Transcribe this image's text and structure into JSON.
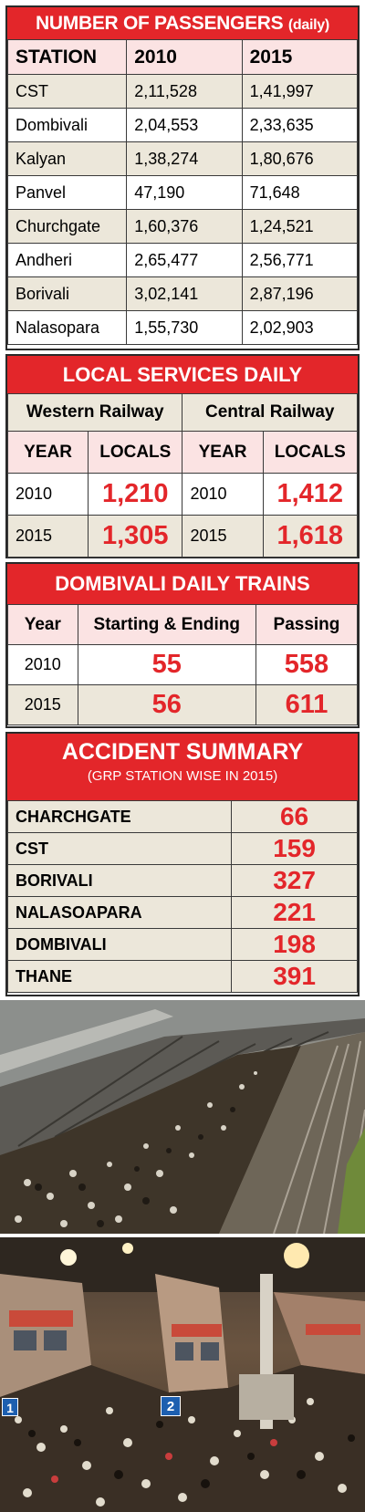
{
  "passengers": {
    "title": "NUMBER OF PASSENGERS",
    "title_suffix": "(daily)",
    "headers": [
      "STATION",
      "2010",
      "2015"
    ],
    "rows": [
      [
        "CST",
        "2,11,528",
        "1,41,997"
      ],
      [
        "Dombivali",
        "2,04,553",
        "2,33,635"
      ],
      [
        "Kalyan",
        "1,38,274",
        "1,80,676"
      ],
      [
        "Panvel",
        "47,190",
        "71,648"
      ],
      [
        "Churchgate",
        "1,60,376",
        "1,24,521"
      ],
      [
        "Andheri",
        "2,65,477",
        "2,56,771"
      ],
      [
        "Borivali",
        "3,02,141",
        "2,87,196"
      ],
      [
        "Nalasopara",
        "1,55,730",
        "2,02,903"
      ]
    ]
  },
  "locals": {
    "title": "LOCAL SERVICES DAILY",
    "western": "Western Railway",
    "central": "Central Railway",
    "col_year": "YEAR",
    "col_locals": "LOCALS",
    "rows": [
      {
        "w_year": "2010",
        "w_locals": "1,210",
        "c_year": "2010",
        "c_locals": "1,412"
      },
      {
        "w_year": "2015",
        "w_locals": "1,305",
        "c_year": "2015",
        "c_locals": "1,618"
      }
    ]
  },
  "dombivali": {
    "title": "DOMBIVALI DAILY TRAINS",
    "headers": [
      "Year",
      "Starting & Ending",
      "Passing"
    ],
    "rows": [
      [
        "2010",
        "55",
        "558"
      ],
      [
        "2015",
        "56",
        "611"
      ]
    ]
  },
  "accidents": {
    "title": "ACCIDENT SUMMARY",
    "subtitle": "(GRP STATION WISE IN 2015)",
    "rows": [
      [
        "CHARCHGATE",
        "66"
      ],
      [
        "CST",
        "159"
      ],
      [
        "BORIVALI",
        "327"
      ],
      [
        "NALASOAPARA",
        "221"
      ],
      [
        "DOMBIVALI",
        "198"
      ],
      [
        "THANE",
        "391"
      ]
    ]
  },
  "photos": {
    "platform_numbers": [
      "1",
      "2"
    ]
  },
  "colors": {
    "header_red": "#e3262a",
    "shade": "#ece7da",
    "pink": "#fbe3e3"
  }
}
